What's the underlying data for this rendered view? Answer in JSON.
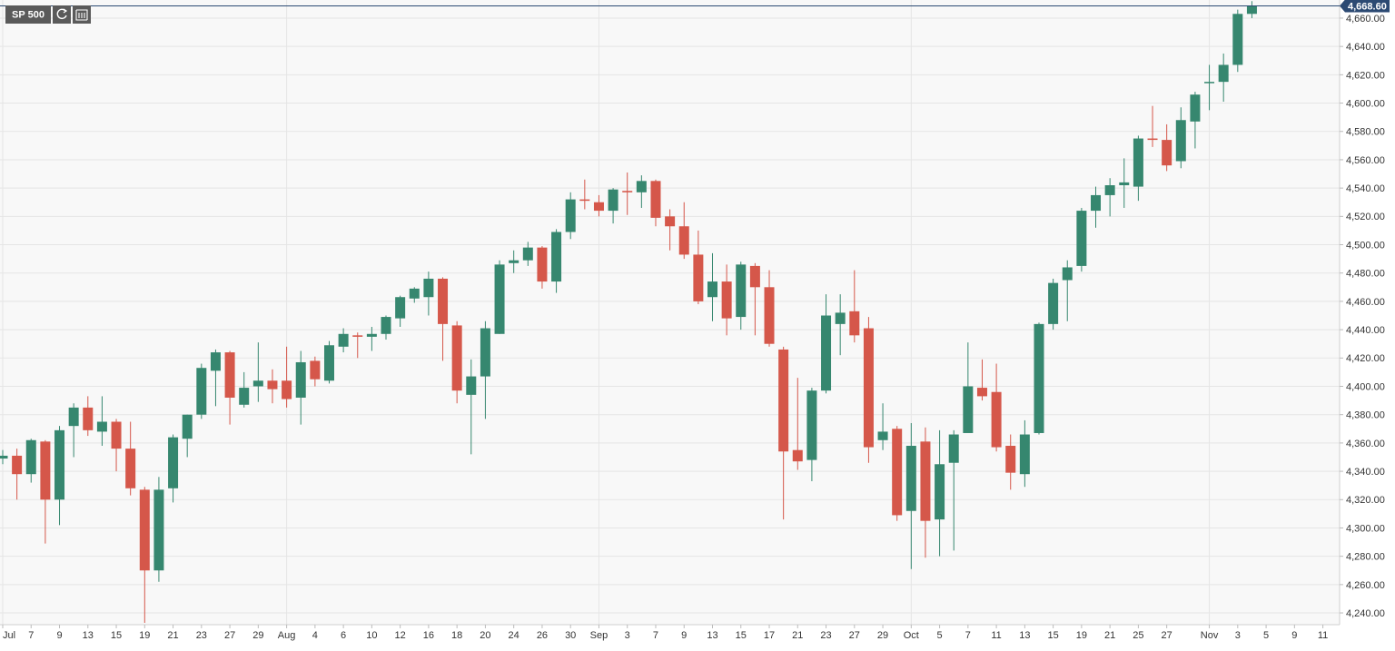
{
  "chart_data": {
    "type": "candlestick",
    "title": "SP 500",
    "categories": [
      "Jul",
      null,
      "7",
      null,
      "9",
      null,
      "13",
      null,
      "15",
      null,
      "19",
      null,
      "21",
      null,
      "23",
      null,
      "27",
      null,
      "29",
      null,
      "Aug",
      null,
      "4",
      null,
      "6",
      null,
      "10",
      null,
      "12",
      null,
      "16",
      null,
      "18",
      null,
      "20",
      null,
      "24",
      null,
      "26",
      null,
      "30",
      null,
      "Sep",
      null,
      "3",
      null,
      "7",
      null,
      "9",
      null,
      "13",
      null,
      "15",
      null,
      "17",
      null,
      "21",
      null,
      "23",
      null,
      "27",
      null,
      "29",
      null,
      "Oct",
      null,
      "5",
      null,
      "7",
      null,
      "11",
      null,
      "13",
      null,
      "15",
      null,
      "19",
      null,
      "21",
      null,
      "25",
      null,
      "27",
      null,
      null,
      "Nov",
      null,
      "3",
      null,
      "5",
      null,
      "9",
      null,
      "11",
      null
    ],
    "open": [
      4349,
      4351,
      4338,
      4361,
      4320,
      4372,
      4385,
      4368,
      4375,
      4356,
      4327,
      4270,
      4328,
      4363,
      4380,
      4411,
      4424,
      4387,
      4400,
      4404,
      4404,
      4392,
      4418,
      4404,
      4428,
      4436,
      4435,
      4437,
      4448,
      4462,
      4463,
      4476,
      4443,
      4394,
      4407,
      4437,
      4487,
      4489,
      4498,
      4474,
      4509,
      4532,
      4530,
      4524,
      4538,
      4537,
      4545,
      4520,
      4513,
      4493,
      4463,
      4474,
      4449,
      4485,
      4470,
      4426,
      4355,
      4348,
      4397,
      4444,
      4453,
      4441,
      4362,
      4370,
      4312,
      4361,
      4306,
      4346,
      4367,
      4399,
      4396,
      4358,
      4338,
      4367,
      4444,
      4475,
      4485,
      4524,
      4535,
      4542,
      4541,
      4575,
      4574,
      4559,
      4587,
      4615,
      4615,
      4627,
      4663,
      null,
      null,
      null,
      null,
      null,
      null
    ],
    "high": [
      4355,
      4356,
      4363,
      4362,
      4372,
      4388,
      4393,
      4393,
      4377,
      4375,
      4329,
      4336,
      4366,
      4380,
      4416,
      4426,
      4425,
      4410,
      4431,
      4412,
      4428,
      4425,
      4421,
      4432,
      4441,
      4438,
      4442,
      4450,
      4464,
      4470,
      4481,
      4477,
      4446,
      4419,
      4446,
      4489,
      4496,
      4502,
      4499,
      4511,
      4537,
      4546,
      4535,
      4540,
      4551,
      4549,
      4546,
      4525,
      4530,
      4510,
      4494,
      4486,
      4488,
      4487,
      4482,
      4428,
      4406,
      4399,
      4465,
      4465,
      4482,
      4449,
      4388,
      4372,
      4374,
      4371,
      4369,
      4369,
      4431,
      4419,
      4416,
      4366,
      4376,
      4445,
      4476,
      4489,
      4526,
      4541,
      4547,
      4561,
      4577,
      4598,
      4585,
      4597,
      4608,
      4627,
      4635,
      4666,
      4672,
      null,
      null,
      null,
      null,
      null,
      null
    ],
    "low": [
      4345,
      4320,
      4332,
      4289,
      4302,
      4350,
      4365,
      4358,
      4340,
      4323,
      4233,
      4262,
      4318,
      4350,
      4377,
      4386,
      4373,
      4385,
      4389,
      4388,
      4385,
      4373,
      4400,
      4402,
      4424,
      4420,
      4425,
      4433,
      4442,
      4459,
      4450,
      4418,
      4388,
      4352,
      4377,
      4437,
      4480,
      4485,
      4469,
      4466,
      4504,
      4525,
      4520,
      4515,
      4521,
      4526,
      4513,
      4496,
      4490,
      4458,
      4446,
      4436,
      4440,
      4436,
      4428,
      4306,
      4341,
      4333,
      4395,
      4422,
      4431,
      4346,
      4355,
      4305,
      4271,
      4279,
      4280,
      4284,
      4368,
      4390,
      4354,
      4327,
      4329,
      4366,
      4440,
      4446,
      4481,
      4512,
      4520,
      4526,
      4531,
      4569,
      4552,
      4554,
      4568,
      4595,
      4601,
      4622,
      4660,
      null,
      null,
      null,
      null,
      null,
      null
    ],
    "close": [
      4351,
      4338,
      4362,
      4320,
      4369,
      4385,
      4369,
      4375,
      4356,
      4328,
      4270,
      4327,
      4364,
      4380,
      4413,
      4424,
      4392,
      4399,
      4404,
      4398,
      4391,
      4417,
      4405,
      4429,
      4437,
      4435,
      4437,
      4449,
      4463,
      4469,
      4476,
      4444,
      4397,
      4407,
      4441,
      4486,
      4489,
      4498,
      4474,
      4509,
      4532,
      4531,
      4524,
      4539,
      4537,
      4545,
      4519,
      4513,
      4493,
      4460,
      4474,
      4448,
      4486,
      4470,
      4430,
      4354,
      4347,
      4397,
      4450,
      4452,
      4436,
      4357,
      4368,
      4309,
      4358,
      4305,
      4345,
      4366,
      4400,
      4393,
      4357,
      4339,
      4366,
      4444,
      4473,
      4484,
      4524,
      4535,
      4542,
      4544,
      4575,
      4574,
      4556,
      4588,
      4606,
      4615,
      4627,
      4663,
      4668.6,
      null,
      null,
      null,
      null,
      null,
      null
    ],
    "up_color": "#36876f",
    "down_color": "#d5574a",
    "last_price": {
      "value": 4668.6,
      "label": "4,668.60"
    },
    "last_price_color": "#2c4a73",
    "ylim": [
      4231.7,
      4672.8
    ],
    "yticks": [
      {
        "value": 4240,
        "label": "4,240.00"
      },
      {
        "value": 4260,
        "label": "4,260.00"
      },
      {
        "value": 4280,
        "label": "4,280.00"
      },
      {
        "value": 4300,
        "label": "4,300.00"
      },
      {
        "value": 4320,
        "label": "4,320.00"
      },
      {
        "value": 4340,
        "label": "4,340.00"
      },
      {
        "value": 4360,
        "label": "4,360.00"
      },
      {
        "value": 4380,
        "label": "4,380.00"
      },
      {
        "value": 4400,
        "label": "4,400.00"
      },
      {
        "value": 4420,
        "label": "4,420.00"
      },
      {
        "value": 4440,
        "label": "4,440.00"
      },
      {
        "value": 4460,
        "label": "4,460.00"
      },
      {
        "value": 4480,
        "label": "4,480.00"
      },
      {
        "value": 4500,
        "label": "4,500.00"
      },
      {
        "value": 4520,
        "label": "4,520.00"
      },
      {
        "value": 4540,
        "label": "4,540.00"
      },
      {
        "value": 4560,
        "label": "4,560.00"
      },
      {
        "value": 4580,
        "label": "4,580.00"
      },
      {
        "value": 4600,
        "label": "4,600.00"
      },
      {
        "value": 4620,
        "label": "4,620.00"
      },
      {
        "value": 4640,
        "label": "4,640.00"
      },
      {
        "value": 4660,
        "label": "4,660.00"
      }
    ],
    "grid": true
  }
}
